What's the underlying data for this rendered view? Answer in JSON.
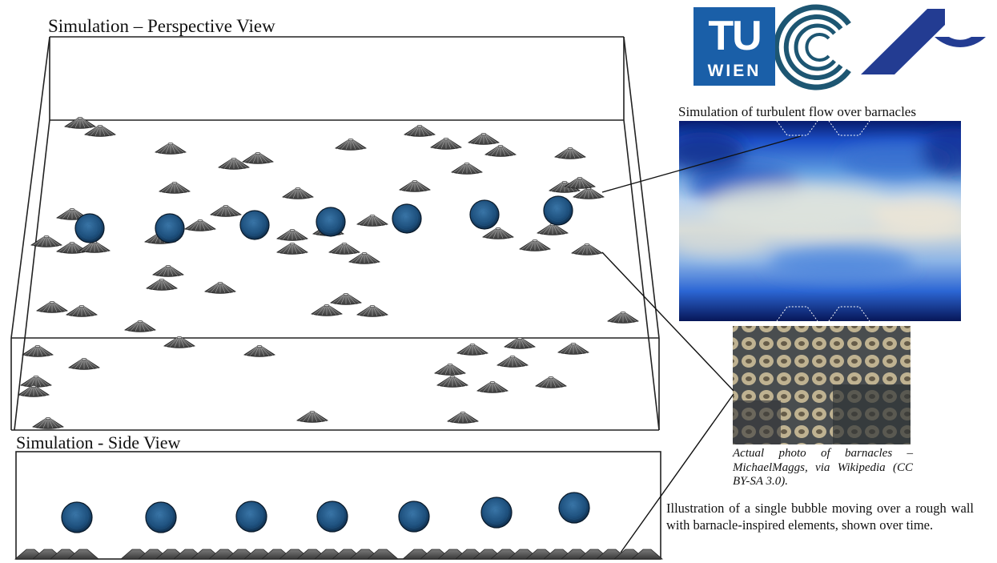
{
  "titles": {
    "perspective": "Simulation – Perspective View",
    "side": "Simulation - Side View",
    "flow": "Simulation of turbulent flow over barnacles"
  },
  "logos": {
    "tu_wien_letters": "TU",
    "tu_wien_word": "WIEN"
  },
  "captions": {
    "photo": "Actual photo of barnacles – MichaelMaggs, via Wikipedia (CC BY-SA 3.0).",
    "illustration": "Illustration of a single bubble moving over a rough wall with barnacle-inspired elements, shown over time."
  },
  "colors": {
    "tu_blue": "#1a5fa8",
    "vsc_teal": "#1d5672",
    "au_blue": "#233c92",
    "bubble": "#1d4f7c",
    "barnacle": "#555555",
    "flow_dark": "#0a1f7a",
    "flow_light": "#e8e4d8"
  }
}
